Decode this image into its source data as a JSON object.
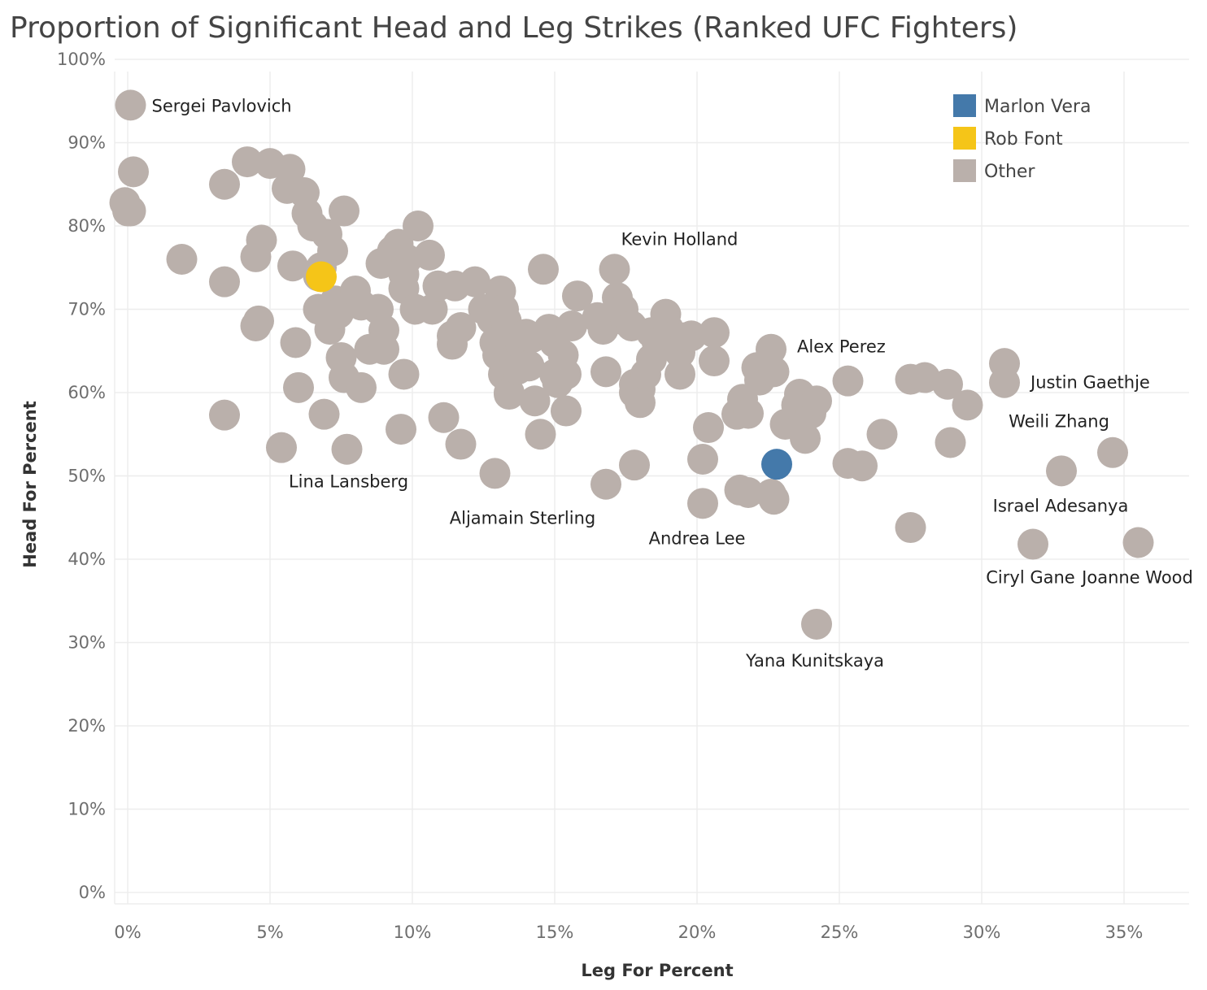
{
  "chart_data": {
    "type": "scatter",
    "title": "Proportion of Significant Head and Leg Strikes (Ranked UFC Fighters)",
    "xlabel": "Leg For Percent",
    "ylabel": "Head For Percent",
    "xlim": [
      -0.005,
      0.375
    ],
    "ylim": [
      -0.015,
      1.01
    ],
    "grid": true,
    "legend_position": "top-right",
    "x_ticks": [
      {
        "value": 0.0,
        "label": "0%"
      },
      {
        "value": 0.05,
        "label": "5%"
      },
      {
        "value": 0.1,
        "label": "10%"
      },
      {
        "value": 0.15,
        "label": "15%"
      },
      {
        "value": 0.2,
        "label": "20%"
      },
      {
        "value": 0.25,
        "label": "25%"
      },
      {
        "value": 0.3,
        "label": "30%"
      },
      {
        "value": 0.35,
        "label": "35%"
      }
    ],
    "y_ticks": [
      {
        "value": 0.0,
        "label": "0%"
      },
      {
        "value": 0.1,
        "label": "10%"
      },
      {
        "value": 0.2,
        "label": "20%"
      },
      {
        "value": 0.3,
        "label": "30%"
      },
      {
        "value": 0.4,
        "label": "40%"
      },
      {
        "value": 0.5,
        "label": "50%"
      },
      {
        "value": 0.6,
        "label": "60%"
      },
      {
        "value": 0.7,
        "label": "70%"
      },
      {
        "value": 0.8,
        "label": "80%"
      },
      {
        "value": 0.9,
        "label": "90%"
      },
      {
        "value": 1.0,
        "label": "100%"
      }
    ],
    "legend": [
      {
        "name": "Marlon Vera",
        "color": "#4479aa"
      },
      {
        "name": "Rob Font",
        "color": "#f5c518"
      },
      {
        "name": "Other",
        "color": "#bab0ab"
      }
    ],
    "series": [
      {
        "name": "Other",
        "color": "#bab0ab",
        "points": [
          [
            0.001,
            0.945
          ],
          [
            0.002,
            0.865
          ],
          [
            -0.001,
            0.828
          ],
          [
            0.0,
            0.818
          ],
          [
            0.001,
            0.818
          ],
          [
            0.019,
            0.76
          ],
          [
            0.034,
            0.85
          ],
          [
            0.034,
            0.733
          ],
          [
            0.034,
            0.573
          ],
          [
            0.042,
            0.877
          ],
          [
            0.047,
            0.783
          ],
          [
            0.045,
            0.763
          ],
          [
            0.045,
            0.68
          ],
          [
            0.046,
            0.686
          ],
          [
            0.05,
            0.875
          ],
          [
            0.057,
            0.868
          ],
          [
            0.056,
            0.845
          ],
          [
            0.058,
            0.752
          ],
          [
            0.059,
            0.66
          ],
          [
            0.06,
            0.606
          ],
          [
            0.054,
            0.534
          ],
          [
            0.062,
            0.84
          ],
          [
            0.063,
            0.815
          ],
          [
            0.065,
            0.8
          ],
          [
            0.068,
            0.75
          ],
          [
            0.067,
            0.74
          ],
          [
            0.067,
            0.7
          ],
          [
            0.069,
            0.574
          ],
          [
            0.07,
            0.79
          ],
          [
            0.072,
            0.77
          ],
          [
            0.071,
            0.676
          ],
          [
            0.073,
            0.71
          ],
          [
            0.074,
            0.695
          ],
          [
            0.075,
            0.642
          ],
          [
            0.076,
            0.618
          ],
          [
            0.077,
            0.532
          ],
          [
            0.076,
            0.818
          ],
          [
            0.08,
            0.722
          ],
          [
            0.082,
            0.705
          ],
          [
            0.085,
            0.652
          ],
          [
            0.082,
            0.606
          ],
          [
            0.088,
            0.7
          ],
          [
            0.09,
            0.675
          ],
          [
            0.09,
            0.652
          ],
          [
            0.089,
            0.755
          ],
          [
            0.093,
            0.77
          ],
          [
            0.095,
            0.778
          ],
          [
            0.098,
            0.76
          ],
          [
            0.097,
            0.742
          ],
          [
            0.097,
            0.725
          ],
          [
            0.101,
            0.7
          ],
          [
            0.102,
            0.8
          ],
          [
            0.097,
            0.622
          ],
          [
            0.096,
            0.556
          ],
          [
            0.106,
            0.765
          ],
          [
            0.107,
            0.7
          ],
          [
            0.109,
            0.728
          ],
          [
            0.115,
            0.728
          ],
          [
            0.111,
            0.57
          ],
          [
            0.117,
            0.538
          ],
          [
            0.114,
            0.668
          ],
          [
            0.114,
            0.658
          ],
          [
            0.117,
            0.678
          ],
          [
            0.122,
            0.733
          ],
          [
            0.125,
            0.7
          ],
          [
            0.128,
            0.688
          ],
          [
            0.129,
            0.66
          ],
          [
            0.13,
            0.645
          ],
          [
            0.131,
            0.722
          ],
          [
            0.132,
            0.7
          ],
          [
            0.133,
            0.686
          ],
          [
            0.134,
            0.65
          ],
          [
            0.132,
            0.622
          ],
          [
            0.134,
            0.6
          ],
          [
            0.134,
            0.598
          ],
          [
            0.129,
            0.503
          ],
          [
            0.136,
            0.64
          ],
          [
            0.137,
            0.628
          ],
          [
            0.138,
            0.658
          ],
          [
            0.14,
            0.67
          ],
          [
            0.141,
            0.632
          ],
          [
            0.142,
            0.666
          ],
          [
            0.146,
            0.748
          ],
          [
            0.143,
            0.59
          ],
          [
            0.145,
            0.55
          ],
          [
            0.148,
            0.676
          ],
          [
            0.15,
            0.66
          ],
          [
            0.15,
            0.622
          ],
          [
            0.151,
            0.612
          ],
          [
            0.153,
            0.645
          ],
          [
            0.154,
            0.622
          ],
          [
            0.156,
            0.68
          ],
          [
            0.158,
            0.716
          ],
          [
            0.154,
            0.578
          ],
          [
            0.165,
            0.69
          ],
          [
            0.167,
            0.676
          ],
          [
            0.168,
            0.625
          ],
          [
            0.168,
            0.49
          ],
          [
            0.171,
            0.748
          ],
          [
            0.172,
            0.714
          ],
          [
            0.174,
            0.7
          ],
          [
            0.175,
            0.686
          ],
          [
            0.177,
            0.68
          ],
          [
            0.178,
            0.61
          ],
          [
            0.178,
            0.6
          ],
          [
            0.18,
            0.604
          ],
          [
            0.178,
            0.513
          ],
          [
            0.18,
            0.588
          ],
          [
            0.182,
            0.622
          ],
          [
            0.184,
            0.672
          ],
          [
            0.186,
            0.66
          ],
          [
            0.184,
            0.64
          ],
          [
            0.189,
            0.694
          ],
          [
            0.19,
            0.676
          ],
          [
            0.192,
            0.668
          ],
          [
            0.194,
            0.648
          ],
          [
            0.194,
            0.622
          ],
          [
            0.196,
            0.666
          ],
          [
            0.198,
            0.668
          ],
          [
            0.202,
            0.52
          ],
          [
            0.202,
            0.467
          ],
          [
            0.204,
            0.558
          ],
          [
            0.206,
            0.672
          ],
          [
            0.206,
            0.638
          ],
          [
            0.214,
            0.574
          ],
          [
            0.216,
            0.592
          ],
          [
            0.218,
            0.575
          ],
          [
            0.215,
            0.483
          ],
          [
            0.218,
            0.48
          ],
          [
            0.221,
            0.63
          ],
          [
            0.222,
            0.615
          ],
          [
            0.226,
            0.652
          ],
          [
            0.227,
            0.625
          ],
          [
            0.227,
            0.472
          ],
          [
            0.226,
            0.478
          ],
          [
            0.231,
            0.562
          ],
          [
            0.235,
            0.585
          ],
          [
            0.236,
            0.598
          ],
          [
            0.238,
            0.545
          ],
          [
            0.24,
            0.575
          ],
          [
            0.242,
            0.59
          ],
          [
            0.242,
            0.322
          ],
          [
            0.253,
            0.614
          ],
          [
            0.253,
            0.515
          ],
          [
            0.258,
            0.512
          ],
          [
            0.265,
            0.55
          ],
          [
            0.275,
            0.616
          ],
          [
            0.28,
            0.618
          ],
          [
            0.275,
            0.438
          ],
          [
            0.288,
            0.61
          ],
          [
            0.289,
            0.54
          ],
          [
            0.295,
            0.585
          ],
          [
            0.308,
            0.635
          ],
          [
            0.308,
            0.612
          ],
          [
            0.318,
            0.418
          ],
          [
            0.328,
            0.506
          ],
          [
            0.346,
            0.528
          ],
          [
            0.355,
            0.42
          ]
        ]
      },
      {
        "name": "Marlon Vera",
        "color": "#4479aa",
        "points": [
          [
            0.228,
            0.514
          ]
        ]
      },
      {
        "name": "Rob Font",
        "color": "#f5c518",
        "points": [
          [
            0.068,
            0.739
          ]
        ]
      }
    ],
    "annotations": [
      {
        "text": "Sergei Pavlovich",
        "x": 0.001,
        "y": 0.945,
        "anchor": "start",
        "dx": 26,
        "dy": 8
      },
      {
        "text": "Kevin Holland",
        "x": 0.171,
        "y": 0.748,
        "anchor": "middle",
        "dx": 80,
        "dy": -30
      },
      {
        "text": "Alex Perez",
        "x": 0.226,
        "y": 0.652,
        "anchor": "start",
        "dx": 32,
        "dy": 4
      },
      {
        "text": "Justin Gaethje",
        "x": 0.308,
        "y": 0.612,
        "anchor": "start",
        "dx": 32,
        "dy": 7
      },
      {
        "text": "Weili Zhang",
        "x": 0.328,
        "y": 0.506,
        "anchor": "middle",
        "dx": -3,
        "dy": -54
      },
      {
        "text": "Lina Lansberg",
        "x": 0.069,
        "y": 0.574,
        "anchor": "middle",
        "dx": 30,
        "dy": 90
      },
      {
        "text": "Aljamain Sterling",
        "x": 0.129,
        "y": 0.503,
        "anchor": "middle",
        "dx": 34,
        "dy": 62
      },
      {
        "text": "Andrea Lee",
        "x": 0.202,
        "y": 0.467,
        "anchor": "middle",
        "dx": -7,
        "dy": 50
      },
      {
        "text": "Israel Adesanya",
        "x": 0.318,
        "y": 0.418,
        "anchor": "middle",
        "dx": 34,
        "dy": -40
      },
      {
        "text": "Ciryl Gane",
        "x": 0.318,
        "y": 0.418,
        "anchor": "middle",
        "dx": -3,
        "dy": 48
      },
      {
        "text": "Joanne Wood",
        "x": 0.355,
        "y": 0.42,
        "anchor": "middle",
        "dx": -1,
        "dy": 50
      },
      {
        "text": "Yana Kunitskaya",
        "x": 0.242,
        "y": 0.322,
        "anchor": "middle",
        "dx": -2,
        "dy": 52
      }
    ]
  }
}
